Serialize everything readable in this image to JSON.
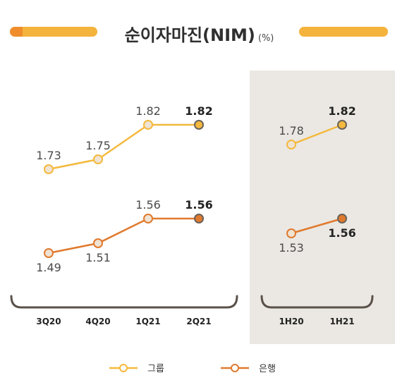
{
  "title": {
    "main": "순이자마진(NIM)",
    "unit": "(%)"
  },
  "colors": {
    "group": "#f4b93d",
    "bank": "#e07a2e",
    "highlight_bg": "#ebe8e3",
    "bracket": "#5a514a"
  },
  "chart_data": [
    {
      "type": "line",
      "categories": [
        "3Q20",
        "4Q20",
        "1Q21",
        "2Q21"
      ],
      "series": [
        {
          "name": "그룹",
          "values": [
            1.73,
            1.75,
            1.82,
            1.82
          ]
        },
        {
          "name": "은행",
          "values": [
            1.49,
            1.51,
            1.56,
            1.56
          ]
        }
      ]
    },
    {
      "type": "line",
      "categories": [
        "1H20",
        "1H21"
      ],
      "series": [
        {
          "name": "그룹",
          "values": [
            1.78,
            1.82
          ]
        },
        {
          "name": "은행",
          "values": [
            1.53,
            1.56
          ]
        }
      ]
    }
  ],
  "legend": {
    "items": [
      "그룹",
      "은행"
    ]
  }
}
